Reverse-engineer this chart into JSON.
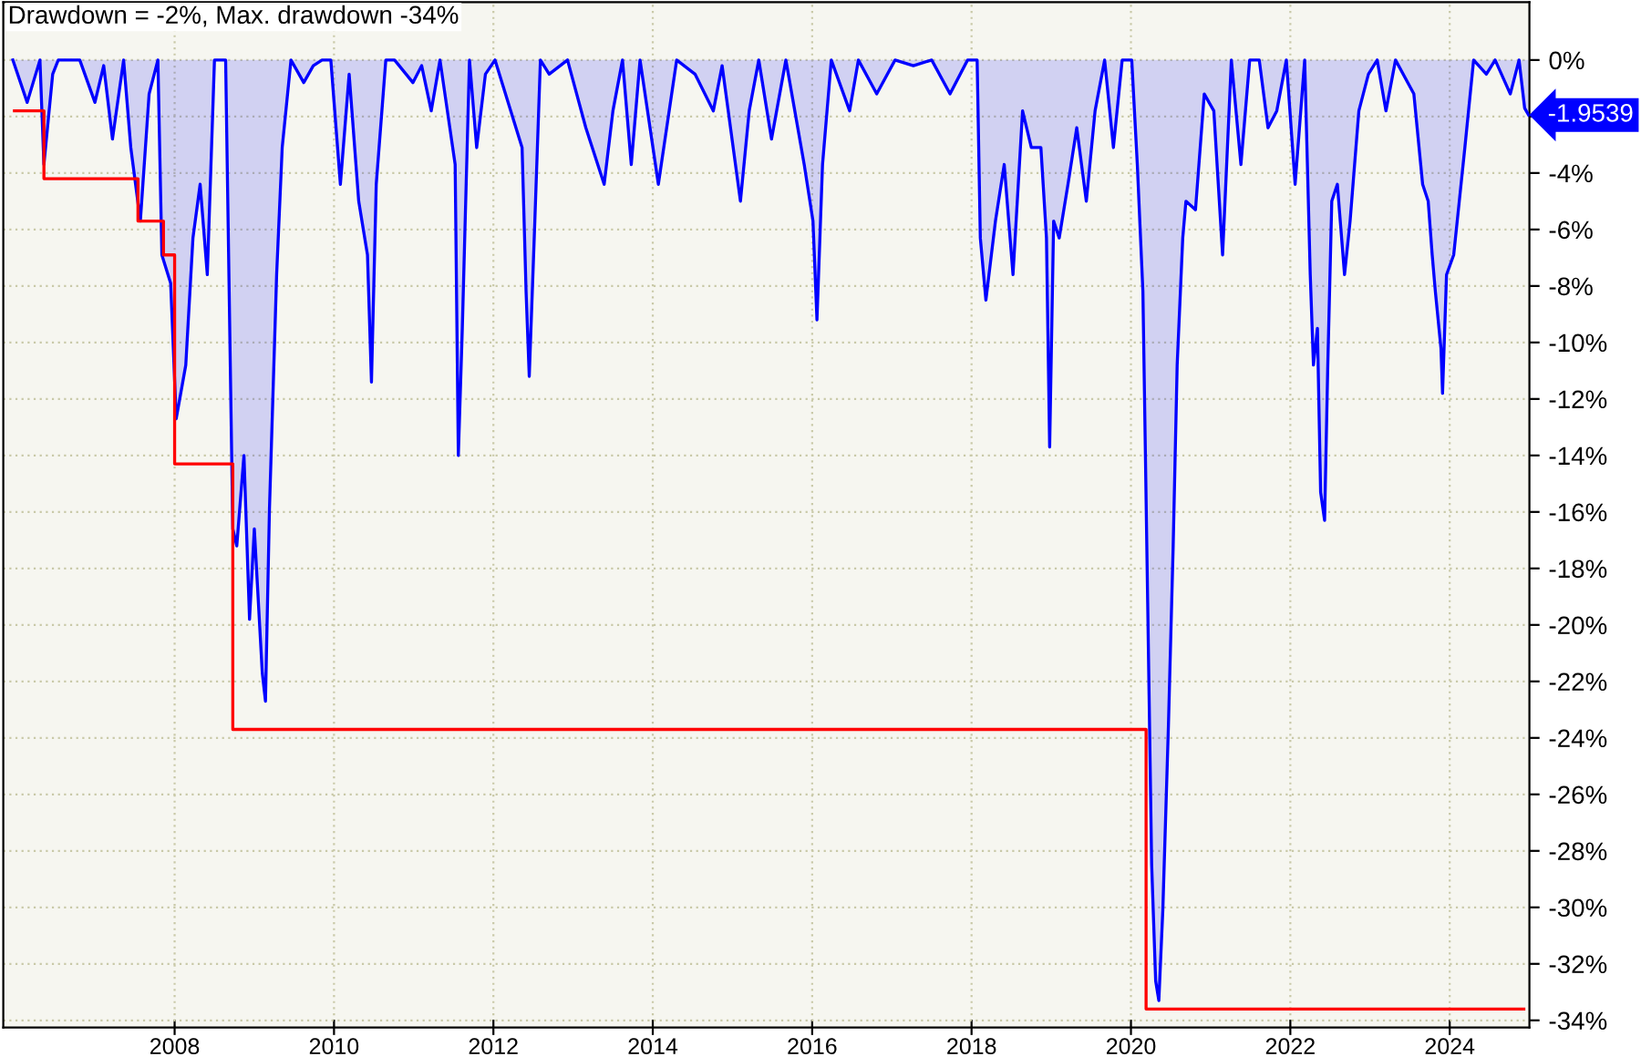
{
  "chart_data": {
    "type": "line",
    "title": "Drawdown = -2%, Max. drawdown -34%",
    "xlim": [
      2005.85,
      2025.0
    ],
    "xticks": [
      2008,
      2010,
      2012,
      2014,
      2016,
      2018,
      2020,
      2022,
      2024
    ],
    "ylim": [
      -34.25,
      2.05
    ],
    "yticks": [
      {
        "value": 0,
        "label": "0%"
      },
      {
        "value": -2,
        "label": null
      },
      {
        "value": -4,
        "label": "-4%"
      },
      {
        "value": -6,
        "label": "-6%"
      },
      {
        "value": -8,
        "label": "-8%"
      },
      {
        "value": -10,
        "label": "-10%"
      },
      {
        "value": -12,
        "label": "-12%"
      },
      {
        "value": -14,
        "label": "-14%"
      },
      {
        "value": -16,
        "label": "-16%"
      },
      {
        "value": -18,
        "label": "-18%"
      },
      {
        "value": -20,
        "label": "-20%"
      },
      {
        "value": -22,
        "label": "-22%"
      },
      {
        "value": -24,
        "label": "-24%"
      },
      {
        "value": -26,
        "label": "-26%"
      },
      {
        "value": -28,
        "label": "-28%"
      },
      {
        "value": -30,
        "label": "-30%"
      },
      {
        "value": -32,
        "label": "-32%"
      },
      {
        "value": -34,
        "label": "-34%"
      }
    ],
    "grid": true,
    "annotations": [
      "-1.9539"
    ],
    "series": [
      {
        "color": "#0000ff",
        "x": [
          2005.97,
          2006.15,
          2006.31,
          2006.36,
          2006.47,
          2006.54,
          2006.81,
          2007.0,
          2007.11,
          2007.22,
          2007.36,
          2007.45,
          2007.57,
          2007.68,
          2007.79,
          2007.84,
          2007.95,
          2008.02,
          2008.14,
          2008.23,
          2008.32,
          2008.41,
          2008.5,
          2008.59,
          2008.64,
          2008.73,
          2008.78,
          2008.87,
          2008.94,
          2009.0,
          2009.1,
          2009.14,
          2009.19,
          2009.28,
          2009.35,
          2009.46,
          2009.62,
          2009.74,
          2009.85,
          2009.96,
          2010.08,
          2010.19,
          2010.31,
          2010.42,
          2010.47,
          2010.53,
          2010.65,
          2010.76,
          2010.99,
          2011.1,
          2011.22,
          2011.33,
          2011.52,
          2011.56,
          2011.61,
          2011.7,
          2011.79,
          2011.9,
          2012.02,
          2012.36,
          2012.41,
          2012.45,
          2012.52,
          2012.59,
          2012.7,
          2012.93,
          2013.16,
          2013.39,
          2013.5,
          2013.62,
          2013.73,
          2013.84,
          2014.07,
          2014.3,
          2014.53,
          2014.76,
          2014.87,
          2015.1,
          2015.21,
          2015.33,
          2015.49,
          2015.67,
          2015.9,
          2016.01,
          2016.06,
          2016.13,
          2016.24,
          2016.47,
          2016.58,
          2016.81,
          2017.04,
          2017.27,
          2017.5,
          2017.73,
          2017.95,
          2018.07,
          2018.11,
          2018.18,
          2018.3,
          2018.41,
          2018.52,
          2018.64,
          2018.75,
          2018.87,
          2018.94,
          2018.98,
          2019.03,
          2019.1,
          2019.21,
          2019.32,
          2019.44,
          2019.55,
          2019.67,
          2019.78,
          2019.89,
          2020.01,
          2020.08,
          2020.15,
          2020.21,
          2020.26,
          2020.31,
          2020.35,
          2020.4,
          2020.47,
          2020.53,
          2020.58,
          2020.65,
          2020.69,
          2020.81,
          2020.92,
          2021.04,
          2021.15,
          2021.26,
          2021.38,
          2021.49,
          2021.61,
          2021.72,
          2021.83,
          2021.95,
          2022.06,
          2022.18,
          2022.25,
          2022.29,
          2022.34,
          2022.38,
          2022.43,
          2022.47,
          2022.52,
          2022.59,
          2022.68,
          2022.75,
          2022.86,
          2022.98,
          2023.09,
          2023.2,
          2023.32,
          2023.55,
          2023.66,
          2023.73,
          2023.78,
          2023.82,
          2023.89,
          2023.91,
          2023.96,
          2024.05,
          2024.12,
          2024.19,
          2024.3,
          2024.46,
          2024.57,
          2024.76,
          2024.87,
          2024.94,
          2024.99
        ],
        "values": [
          0,
          -1.5,
          0,
          -3.7,
          -0.5,
          0,
          0,
          -1.5,
          -0.2,
          -2.8,
          0,
          -3.1,
          -5.7,
          -1.2,
          0,
          -6.9,
          -7.9,
          -12.7,
          -10.8,
          -6.3,
          -4.4,
          -7.6,
          0,
          0,
          0,
          -16.6,
          -17.2,
          -14.0,
          -19.8,
          -16.6,
          -21.7,
          -22.7,
          -15.9,
          -7.6,
          -3.1,
          0,
          -0.8,
          -0.2,
          0,
          0,
          -4.4,
          -0.5,
          -5.0,
          -6.9,
          -11.4,
          -4.4,
          0,
          0,
          -0.8,
          -0.2,
          -1.8,
          0,
          -3.7,
          -14.0,
          -9.5,
          0,
          -3.1,
          -0.5,
          0,
          -3.1,
          -8.2,
          -11.2,
          -5.7,
          0,
          -0.5,
          0,
          -2.4,
          -4.4,
          -1.8,
          0,
          -3.7,
          0,
          -4.4,
          0,
          -0.5,
          -1.8,
          -0.2,
          -5.0,
          -1.8,
          0,
          -2.8,
          0,
          -3.7,
          -5.7,
          -9.2,
          -3.7,
          0,
          -1.8,
          0,
          -1.2,
          0,
          -0.2,
          0,
          -1.2,
          0,
          0,
          -6.3,
          -8.5,
          -5.7,
          -3.7,
          -7.6,
          -1.8,
          -3.1,
          -3.1,
          -6.3,
          -13.7,
          -5.7,
          -6.3,
          -4.4,
          -2.4,
          -5.0,
          -1.8,
          0,
          -3.1,
          0,
          0,
          -3.7,
          -8.2,
          -19.2,
          -28.5,
          -32.6,
          -33.3,
          -30.1,
          -23.6,
          -17.2,
          -10.8,
          -6.3,
          -5.0,
          -5.3,
          -1.2,
          -1.8,
          -6.9,
          0,
          -3.7,
          0,
          0,
          -2.4,
          -1.8,
          0,
          -4.4,
          0,
          -7.6,
          -10.8,
          -9.5,
          -15.3,
          -16.3,
          -10.8,
          -5.0,
          -4.4,
          -7.6,
          -5.7,
          -1.8,
          -0.5,
          0,
          -1.8,
          0,
          -1.2,
          -4.4,
          -5.0,
          -6.9,
          -8.2,
          -10.2,
          -11.8,
          -7.6,
          -6.9,
          -5.0,
          -3.1,
          0,
          -0.5,
          0,
          -1.2,
          0,
          -1.7,
          -1.95
        ]
      },
      {
        "type": "step",
        "color": "#ff0000",
        "x": [
          2005.99,
          2006.36,
          2007.54,
          2007.86,
          2008.0,
          2008.73,
          2020.19,
          2024.93
        ],
        "values": [
          -1.8,
          -4.2,
          -5.7,
          -6.9,
          -14.3,
          -23.7,
          -33.6,
          -33.6
        ]
      }
    ]
  }
}
